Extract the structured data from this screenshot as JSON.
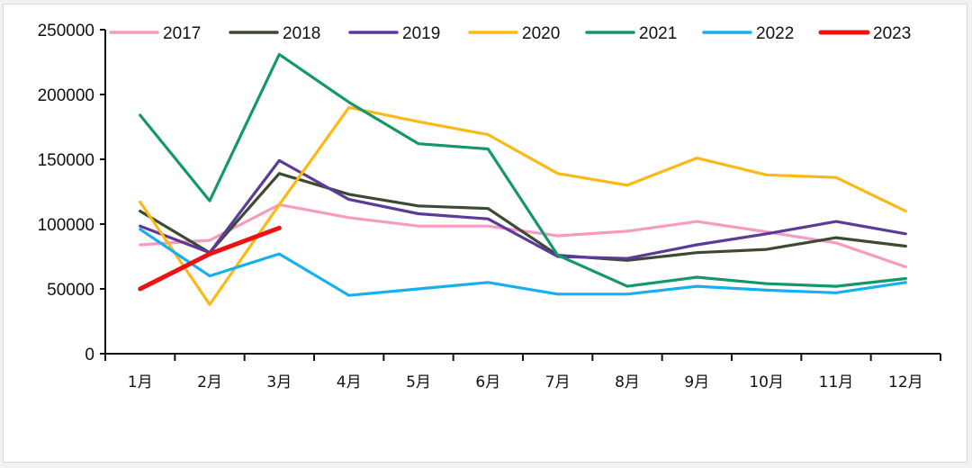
{
  "chart_data": {
    "type": "line",
    "title": "",
    "xlabel": "",
    "ylabel": "",
    "categories": [
      "1月",
      "2月",
      "3月",
      "4月",
      "5月",
      "6月",
      "7月",
      "8月",
      "9月",
      "10月",
      "11月",
      "12月"
    ],
    "yticks": [
      "0",
      "50000",
      "100000",
      "150000",
      "200000",
      "250000"
    ],
    "ylim": [
      0,
      250000
    ],
    "grid": false,
    "legend_position": "top",
    "series": [
      {
        "name": "2017",
        "color": "#f79ac0",
        "values": [
          84000,
          87500,
          115000,
          105000,
          98500,
          98500,
          91000,
          94500,
          102000,
          94000,
          85500,
          67000
        ]
      },
      {
        "name": "2018",
        "color": "#3d4a32",
        "values": [
          110000,
          78000,
          139000,
          123000,
          114000,
          112000,
          76000,
          72000,
          78000,
          80500,
          89500,
          83000
        ]
      },
      {
        "name": "2019",
        "color": "#5b3a9a",
        "values": [
          98500,
          78000,
          149000,
          119000,
          108000,
          104000,
          75000,
          73500,
          84000,
          92500,
          102000,
          92500
        ]
      },
      {
        "name": "2020",
        "color": "#fbb917",
        "values": [
          117000,
          38000,
          115000,
          190000,
          179000,
          169000,
          139000,
          130000,
          151000,
          138000,
          136000,
          110000
        ]
      },
      {
        "name": "2021",
        "color": "#13976b",
        "values": [
          184000,
          118000,
          231000,
          194000,
          162000,
          158000,
          76000,
          52000,
          59000,
          54000,
          52000,
          58000
        ]
      },
      {
        "name": "2022",
        "color": "#16b0f0",
        "values": [
          96000,
          60000,
          77000,
          45000,
          50000,
          55000,
          46000,
          46000,
          52000,
          49000,
          47000,
          55000
        ]
      },
      {
        "name": "2023",
        "color": "#ee1111",
        "values": [
          50000,
          77000,
          97000
        ]
      }
    ]
  }
}
